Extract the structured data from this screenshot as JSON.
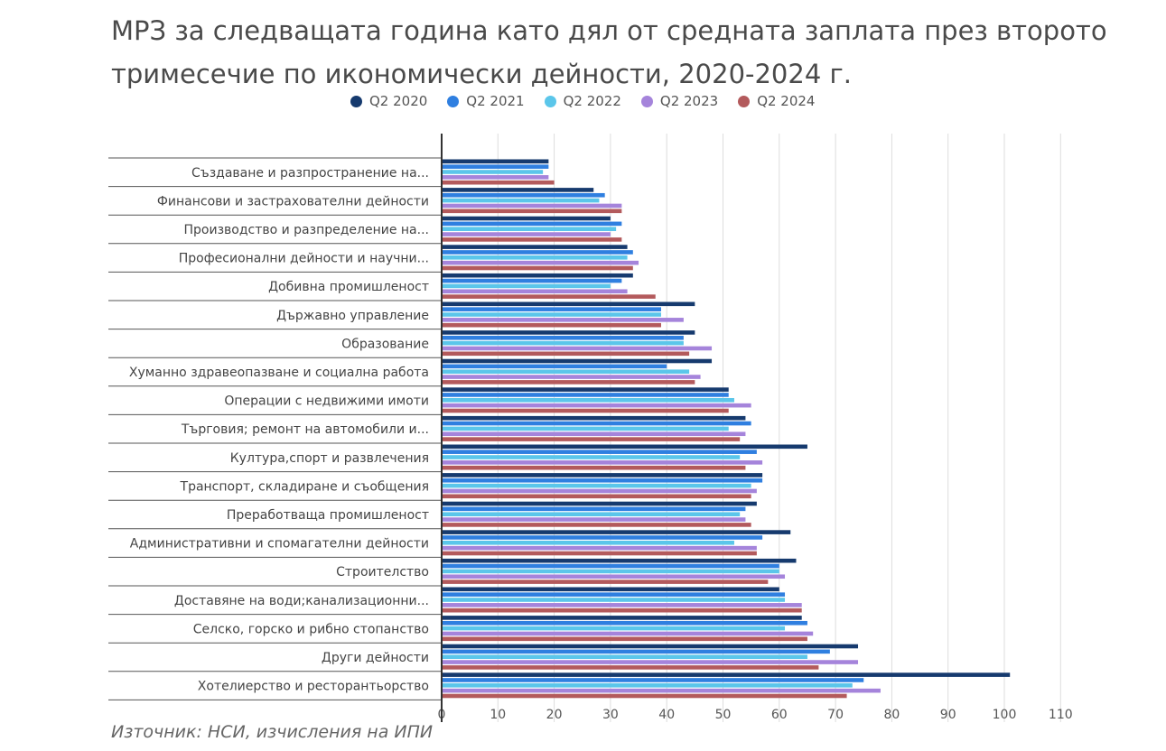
{
  "title": "МРЗ за следващата година като дял от средната заплата през второто тримесечие по икономически дейности, 2020-2024 г.",
  "source": "Източник: НСИ, изчисления на ИПИ",
  "chart_data": {
    "type": "bar",
    "orientation": "horizontal",
    "xlim": [
      0,
      110
    ],
    "ticks": [
      "0",
      "10",
      "20",
      "30",
      "40",
      "50",
      "60",
      "70",
      "80",
      "90",
      "100",
      "110"
    ],
    "grid": true,
    "legend_position": "top",
    "categories": [
      "Създаване и разпространение на...",
      "Финансови и застрахователни дейности",
      "Производство и разпределение на...",
      "Професионални дейности и научни...",
      "Добивна промишленост",
      "Държавно управление",
      "Образование",
      "Хуманно здравеопазване и социална работа",
      "Операции с недвижими имоти",
      "Търговия; ремонт на автомобили и...",
      "Култура,спорт и развлечения",
      "Транспорт, складиране и съобщения",
      "Преработваща промишленост",
      "Административни и спомагателни дейности",
      "Строителство",
      "Доставяне на води;канализационни...",
      "Селско, горско и рибно стопанство",
      "Други дейности",
      "Хотелиерство и ресторантьорство"
    ],
    "series": [
      {
        "name": "Q2 2020",
        "color": "#163a6e",
        "values": [
          19,
          27,
          30,
          33,
          34,
          45,
          45,
          48,
          51,
          54,
          65,
          57,
          56,
          62,
          63,
          60,
          64,
          74,
          101
        ]
      },
      {
        "name": "Q2 2021",
        "color": "#2f7fe0",
        "values": [
          19,
          29,
          32,
          34,
          32,
          39,
          43,
          40,
          51,
          55,
          56,
          57,
          54,
          57,
          60,
          61,
          65,
          69,
          75
        ]
      },
      {
        "name": "Q2 2022",
        "color": "#5bc6ea",
        "values": [
          18,
          28,
          31,
          33,
          30,
          39,
          43,
          44,
          52,
          51,
          53,
          55,
          53,
          52,
          60,
          61,
          61,
          65,
          73
        ]
      },
      {
        "name": "Q2 2023",
        "color": "#a584db",
        "values": [
          19,
          32,
          30,
          35,
          33,
          43,
          48,
          46,
          55,
          54,
          57,
          56,
          54,
          56,
          61,
          64,
          66,
          74,
          78
        ]
      },
      {
        "name": "Q2 2024",
        "color": "#b35a5c",
        "values": [
          20,
          32,
          32,
          34,
          38,
          39,
          44,
          45,
          51,
          53,
          54,
          55,
          55,
          56,
          58,
          64,
          65,
          67,
          72
        ]
      }
    ]
  }
}
